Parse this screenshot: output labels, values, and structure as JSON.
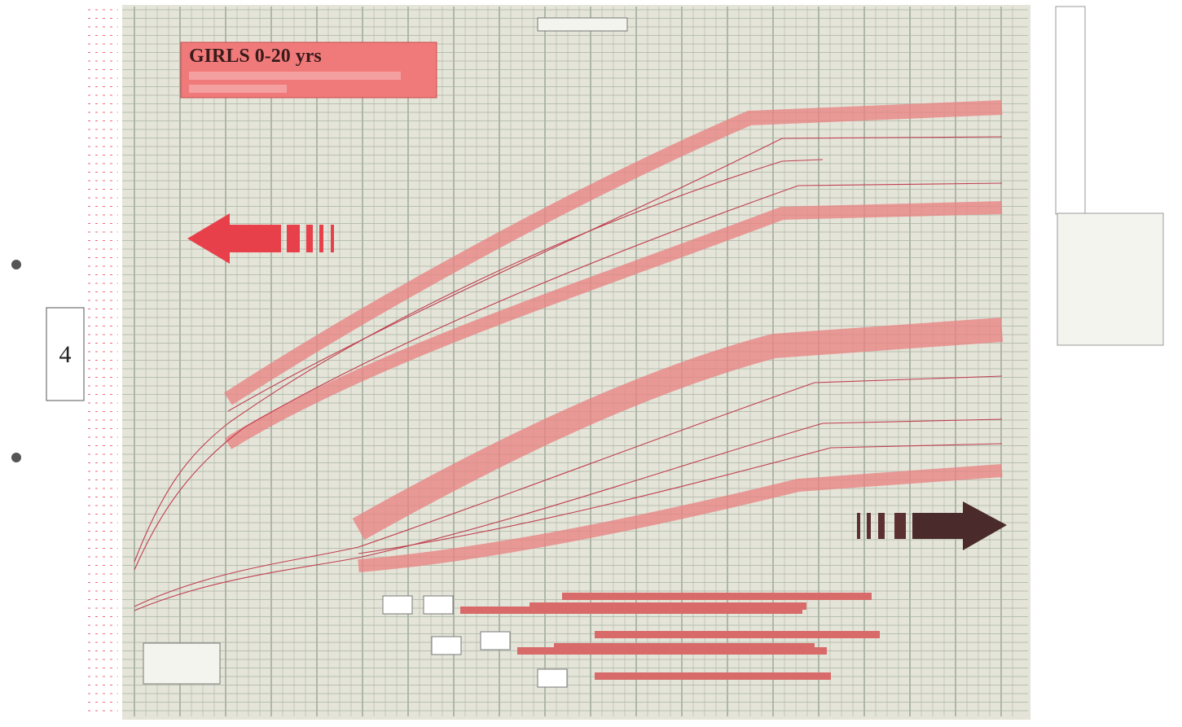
{
  "title": "GIRLS 0-20 yrs",
  "page_number": "4"
}
